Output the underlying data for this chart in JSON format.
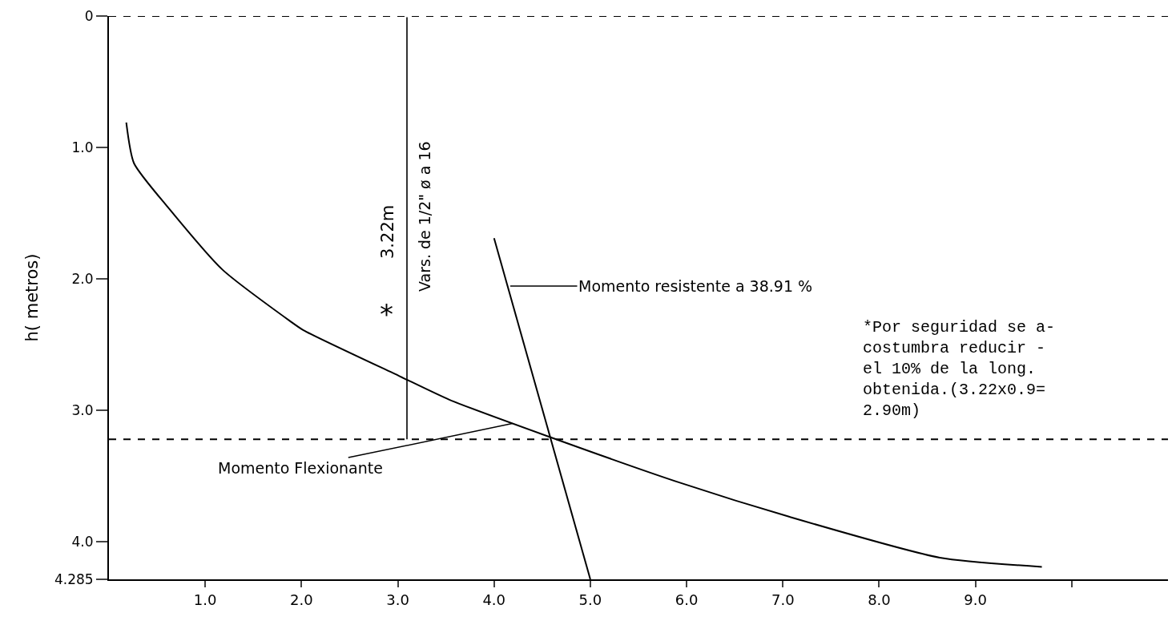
{
  "chart_data": {
    "type": "line",
    "ylabel": "h( metros)",
    "xlim": [
      0,
      11.0
    ],
    "xticks": [
      {
        "value": 1,
        "label": "1.0"
      },
      {
        "value": 2,
        "label": "2.0"
      },
      {
        "value": 3,
        "label": "3.0"
      },
      {
        "value": 4,
        "label": "4.0"
      },
      {
        "value": 5,
        "label": "5.0"
      },
      {
        "value": 6,
        "label": "6.0"
      },
      {
        "value": 7,
        "label": "7.0"
      },
      {
        "value": 8,
        "label": "8.0"
      },
      {
        "value": 9,
        "label": "9.0"
      },
      {
        "value": 10,
        "label": null
      }
    ],
    "ylim": [
      4.285,
      0
    ],
    "yticks": [
      0,
      {
        "value": 1,
        "label": "1.0"
      },
      {
        "value": 2,
        "label": "2.0"
      },
      {
        "value": 3,
        "label": "3.0"
      },
      {
        "value": 4,
        "label": "4.0"
      },
      4.285
    ],
    "series": [
      {
        "color": "#000000",
        "x": [
          0.18,
          0.26,
          0.63,
          1.18,
          1.88,
          2.02,
          3.02,
          3.54,
          4.57,
          5.93,
          7.07,
          8.63,
          9.69
        ],
        "values": [
          0.81,
          1.12,
          1.47,
          1.93,
          2.32,
          2.39,
          2.74,
          2.92,
          3.2,
          3.55,
          3.81,
          4.12,
          4.19
        ]
      },
      {
        "color": "#000000",
        "x": [
          4.0,
          5.0
        ],
        "values": [
          1.69,
          4.285
        ]
      }
    ],
    "ref_lines": [
      {
        "axis": "y",
        "value": 0,
        "color": "#000000",
        "line_style": "dashed"
      },
      {
        "axis": "y",
        "value": 3.22,
        "color": "#000000",
        "line_style": "dashed"
      }
    ],
    "annotations": [
      "Momento resistente a 38.91 %",
      {
        "text": "Momento Flexionante",
        "x": 4.19,
        "y": 3.1
      },
      "3.22m",
      "*",
      "Vars. de 1/2\" ø a 16",
      "*Por seguridad se a-\ncostumbra reducir -\nel 10% de la long.\nobtenida.(3.22x0.9=\n2.90m)"
    ],
    "marker": "none",
    "line_style": "solid"
  }
}
